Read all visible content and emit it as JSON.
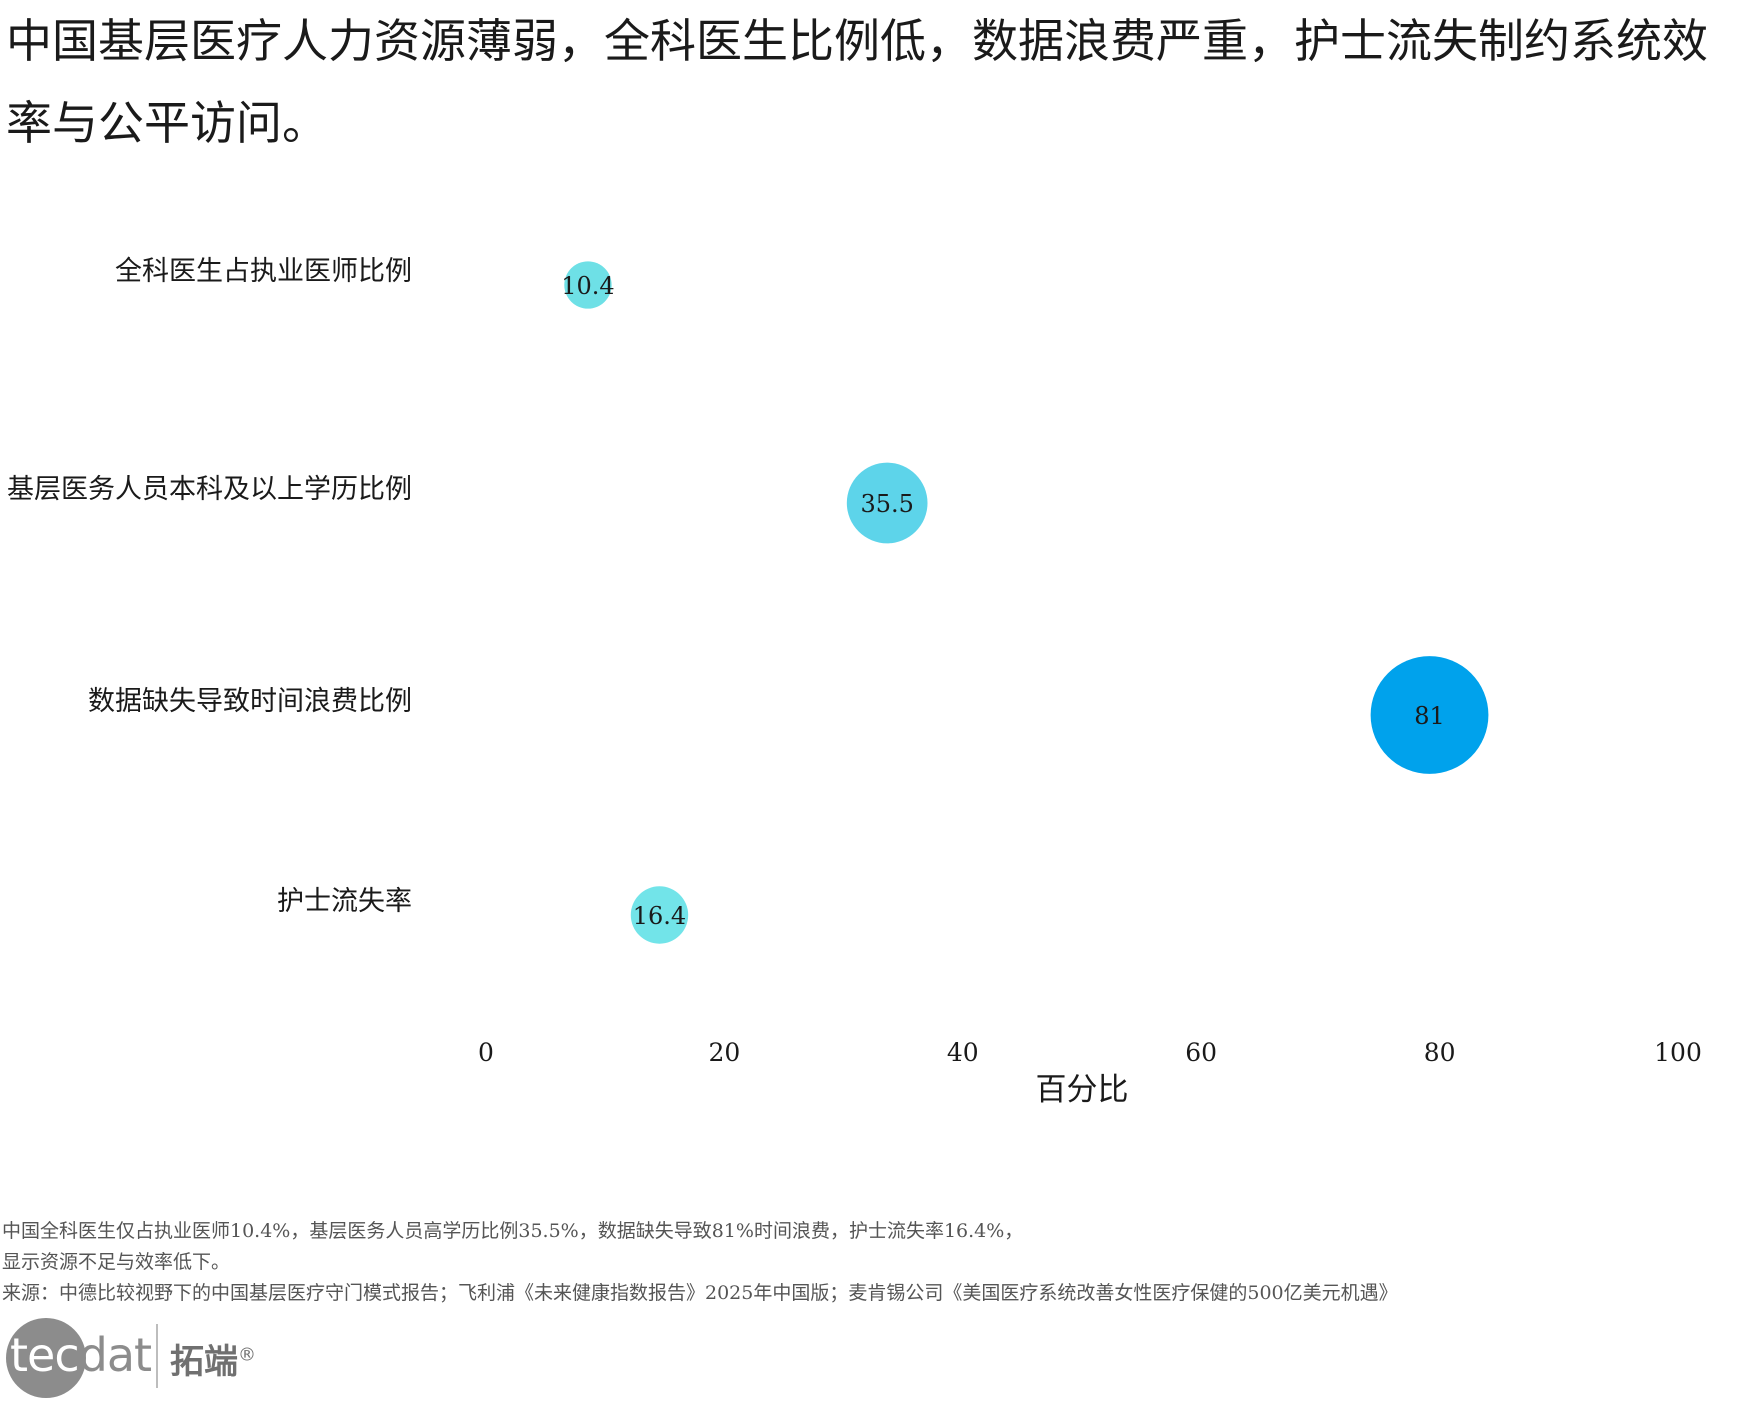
{
  "title": "中国基层医疗人力资源薄弱，全科医生比例低，数据浪费严重，护士流失制约系统效率与公平访问。",
  "chart_data": {
    "type": "scatter",
    "title": "",
    "categories": [
      "全科医生占执业医师比例",
      "基层医务人员本科及以上学历比例",
      "数据缺失导致时间浪费比例",
      "护士流失率"
    ],
    "values": [
      10.4,
      35.5,
      81,
      16.4
    ],
    "value_labels": [
      "10.4",
      "35.5",
      "81",
      "16.4"
    ],
    "colors": [
      "#6ee0e6",
      "#5dd4ea",
      "#00a2ec",
      "#72e4e9"
    ],
    "xlabel": "百分比",
    "ylabel": "",
    "xlim": [
      0,
      100
    ],
    "xticks": [
      "0",
      "20",
      "40",
      "60",
      "80",
      "100"
    ],
    "grid": false,
    "legend": "none"
  },
  "notes": [
    "中国全科医生仅占执业医师10.4%，基层医务人员高学历比例35.5%，数据缺失导致81%时间浪费，护士流失率16.4%，",
    "显示资源不足与效率低下。",
    "来源：中德比较视野下的中国基层医疗守门模式报告；飞利浦《未来健康指数报告》2025年中国版；麦肯锡公司《美国医疗系统改善女性医疗保健的500亿美元机遇》"
  ],
  "logo": {
    "en_first": "tec",
    "en_rest": "dat",
    "cn": "拓端",
    "mark": "®"
  }
}
